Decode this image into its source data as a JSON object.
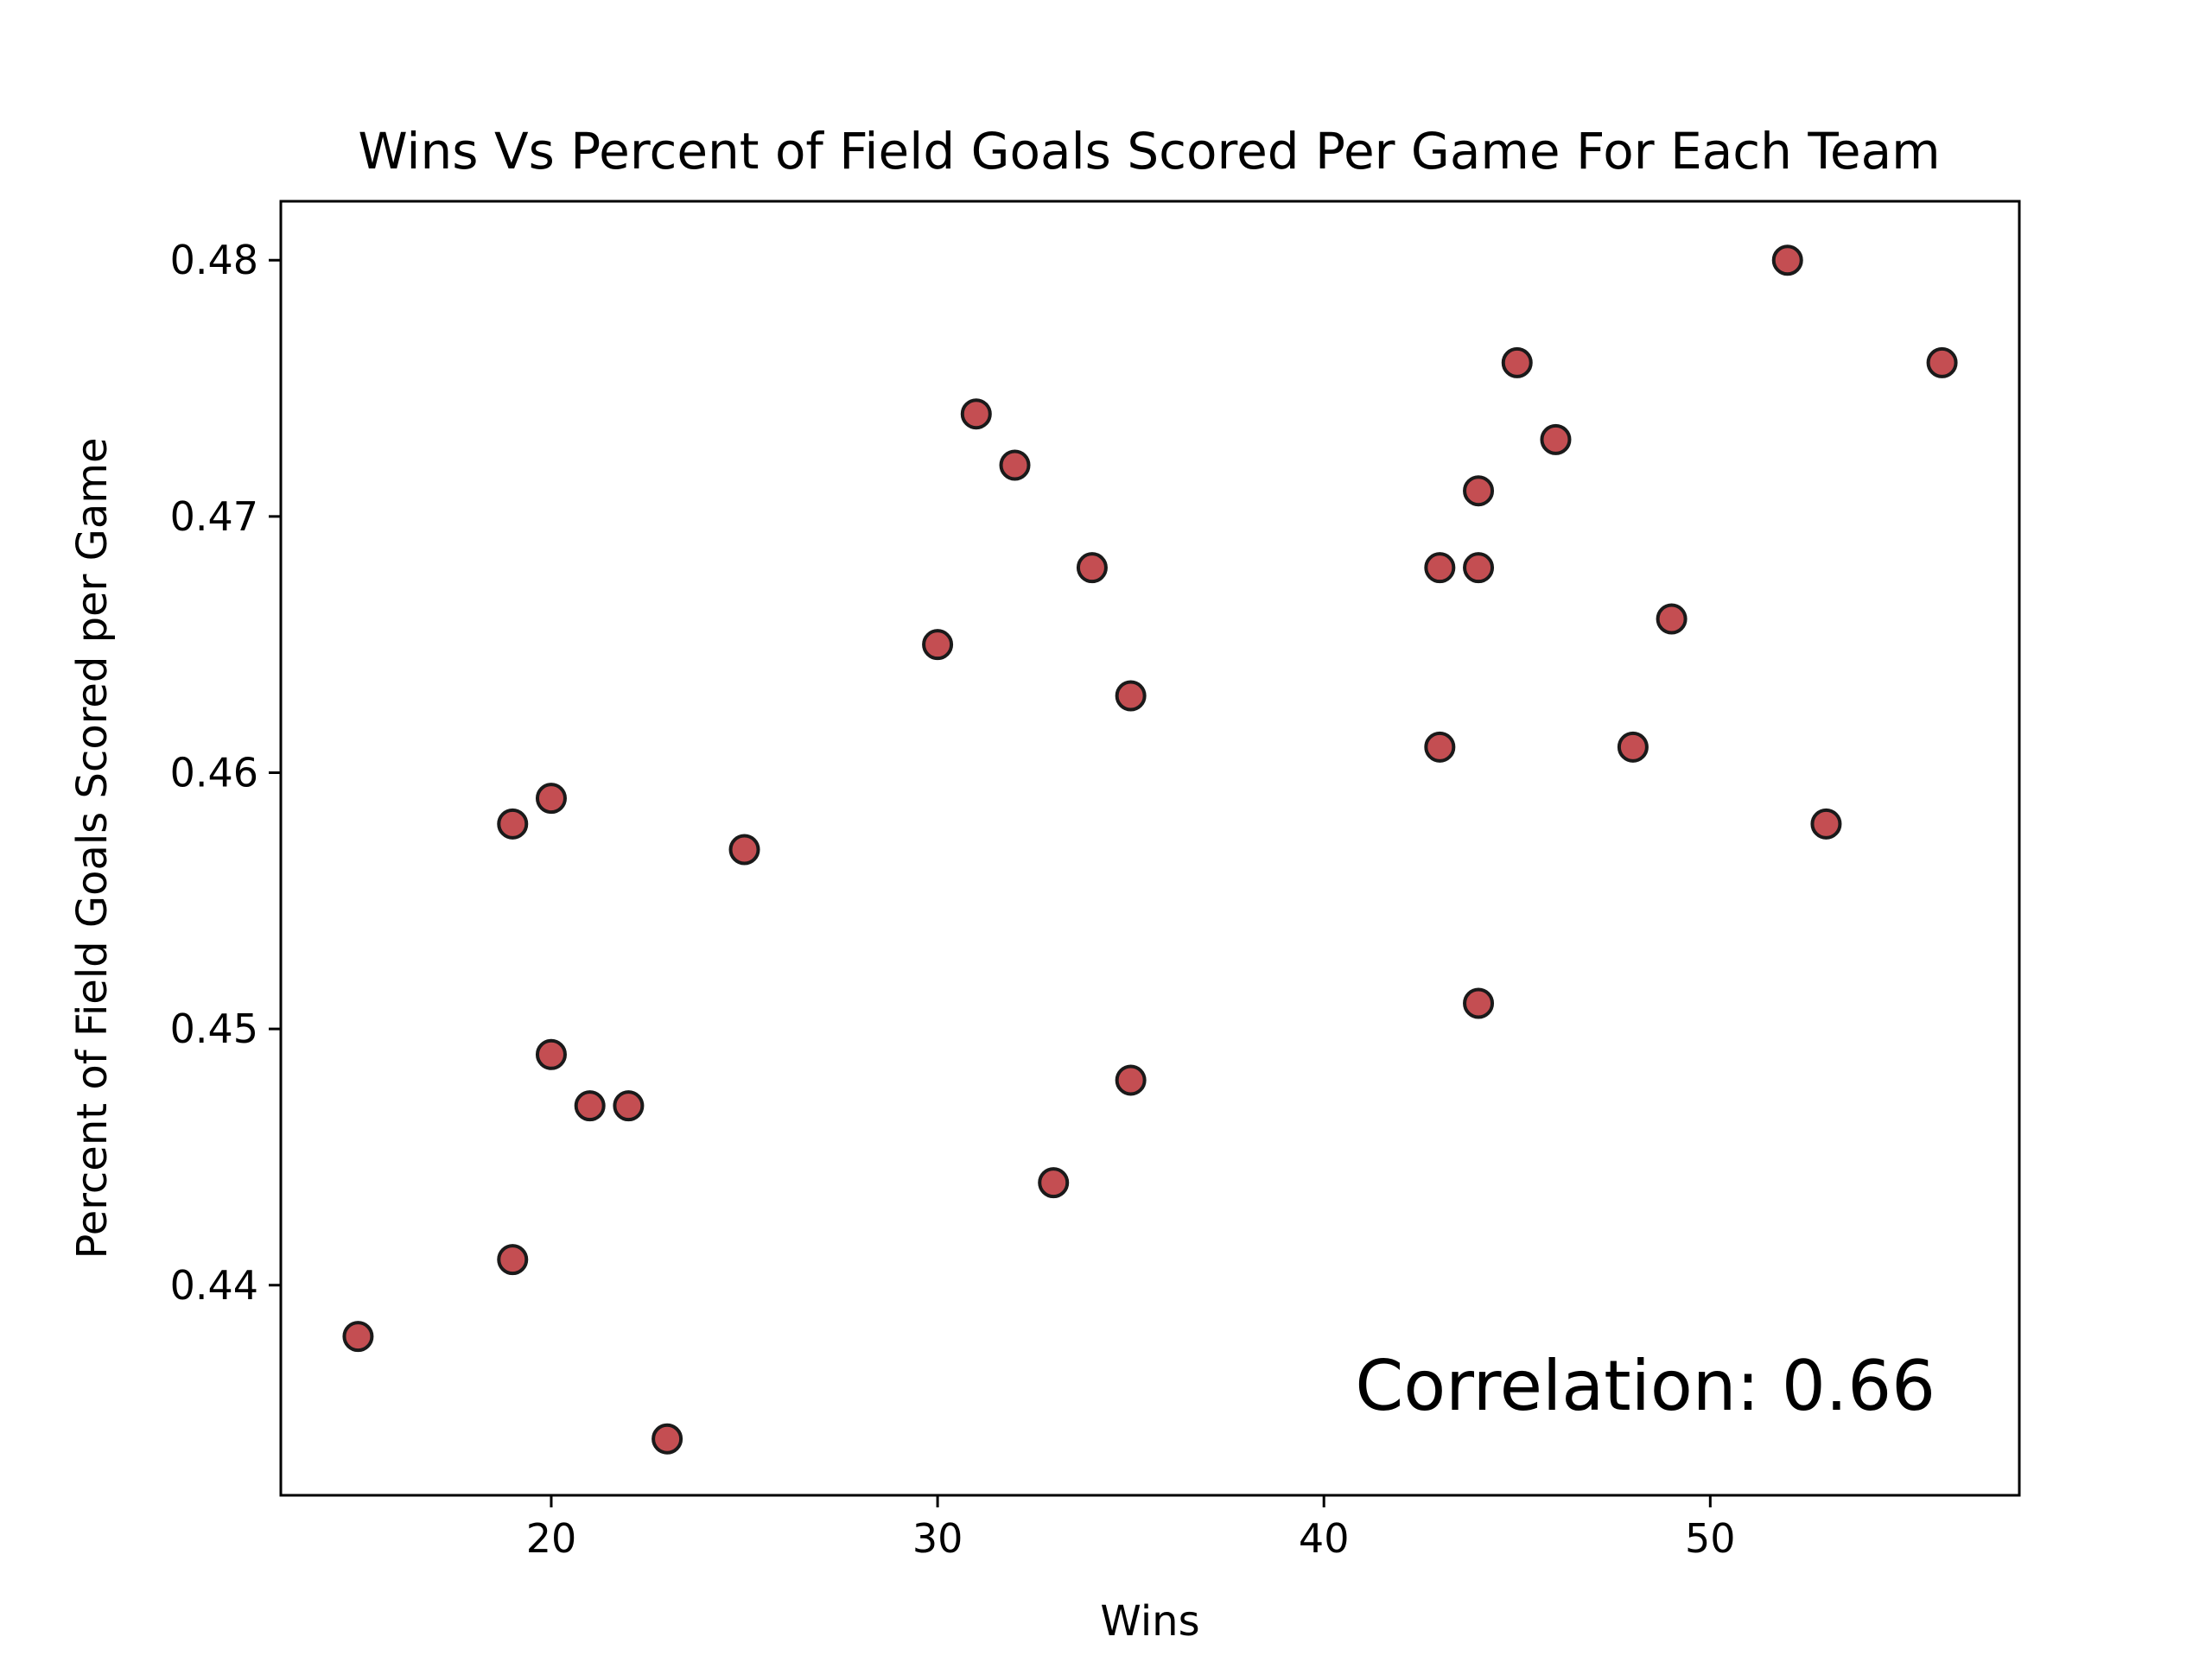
{
  "chart_data": {
    "type": "scatter",
    "title": "Wins Vs Percent of Field Goals Scored Per Game For Each Team",
    "xlabel": "Wins",
    "ylabel": "Percent of Field Goals Scored per Game",
    "xlim": [
      13,
      58
    ],
    "ylim": [
      0.4318,
      0.4823
    ],
    "x_ticks": [
      20,
      30,
      40,
      50
    ],
    "y_ticks": [
      0.44,
      0.45,
      0.46,
      0.47,
      0.48
    ],
    "x_tick_labels": [
      "20",
      "30",
      "40",
      "50"
    ],
    "y_tick_labels": [
      "0.44",
      "0.45",
      "0.46",
      "0.47",
      "0.48"
    ],
    "grid": false,
    "marker_color": "#c44e52",
    "marker_edge_color": "#1a1a1a",
    "points": [
      {
        "x": 15,
        "y": 0.438
      },
      {
        "x": 19,
        "y": 0.441
      },
      {
        "x": 19,
        "y": 0.458
      },
      {
        "x": 20,
        "y": 0.459
      },
      {
        "x": 20,
        "y": 0.449
      },
      {
        "x": 21,
        "y": 0.447
      },
      {
        "x": 22,
        "y": 0.447
      },
      {
        "x": 23,
        "y": 0.434
      },
      {
        "x": 25,
        "y": 0.457
      },
      {
        "x": 30,
        "y": 0.465
      },
      {
        "x": 31,
        "y": 0.474
      },
      {
        "x": 32,
        "y": 0.472
      },
      {
        "x": 33,
        "y": 0.444
      },
      {
        "x": 34,
        "y": 0.468
      },
      {
        "x": 35,
        "y": 0.463
      },
      {
        "x": 35,
        "y": 0.448
      },
      {
        "x": 43,
        "y": 0.468
      },
      {
        "x": 43,
        "y": 0.461
      },
      {
        "x": 44,
        "y": 0.471
      },
      {
        "x": 44,
        "y": 0.468
      },
      {
        "x": 44,
        "y": 0.451
      },
      {
        "x": 45,
        "y": 0.476
      },
      {
        "x": 46,
        "y": 0.473
      },
      {
        "x": 48,
        "y": 0.461
      },
      {
        "x": 49,
        "y": 0.466
      },
      {
        "x": 52,
        "y": 0.48
      },
      {
        "x": 53,
        "y": 0.458
      },
      {
        "x": 56,
        "y": 0.476
      }
    ],
    "annotation": {
      "text": "Correlation: 0.66",
      "color": "#c44e52",
      "placement": "bottom-right"
    }
  }
}
